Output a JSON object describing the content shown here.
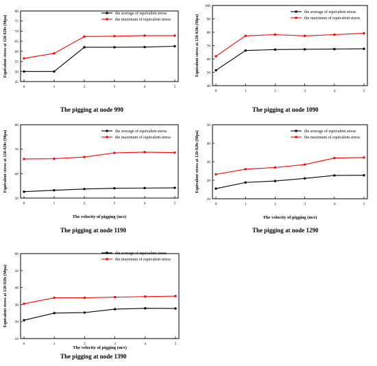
{
  "chart_data": [
    {
      "type": "line",
      "caption": "The pigging at node 990",
      "xlabel": "",
      "ylabel": "Equivalent stress at 120-920s (Mpa)",
      "x": [
        0,
        1,
        2,
        3,
        4,
        5
      ],
      "xlim": [
        0,
        5
      ],
      "ylim": [
        45,
        80
      ],
      "yticks": [
        45,
        50,
        55,
        60,
        65,
        70,
        75,
        80
      ],
      "legend_position": "top-right",
      "series": [
        {
          "name": "the average of equivalent stress",
          "color": "#000000",
          "values": [
            50.0,
            50.0,
            62.0,
            62.0,
            62.1,
            62.5
          ]
        },
        {
          "name": "the maximum of equivalent stress",
          "color": "#ff0000",
          "values": [
            56.5,
            59.0,
            67.3,
            67.5,
            67.8,
            67.8
          ]
        }
      ]
    },
    {
      "type": "line",
      "caption": "The pigging at node 1090",
      "xlabel": "",
      "ylabel": "Equivalent stress at 120-920s (Mpa)",
      "x": [
        0,
        1,
        2,
        3,
        4,
        5
      ],
      "xlim": [
        0,
        5
      ],
      "ylim": [
        40,
        100
      ],
      "yticks": [
        40,
        50,
        60,
        70,
        80,
        90,
        100
      ],
      "legend_position": "top-right",
      "series": [
        {
          "name": "the average of equivalent stress",
          "color": "#000000",
          "values": [
            51.5,
            66.3,
            67.0,
            67.2,
            67.4,
            67.6
          ]
        },
        {
          "name": "the maximum of equivalent stress",
          "color": "#ff0000",
          "values": [
            62.0,
            77.3,
            78.2,
            77.3,
            78.2,
            79.2
          ]
        }
      ]
    },
    {
      "type": "line",
      "caption": "The pigging at node 1190",
      "xlabel": "The velocity of pigging (m/s)",
      "ylabel": "Equivalent stress at 120-920s (Mpa)",
      "x": [
        0,
        1,
        2,
        3,
        4,
        5
      ],
      "xlim": [
        0,
        5
      ],
      "ylim": [
        50,
        80
      ],
      "yticks": [
        50,
        60,
        70,
        80
      ],
      "legend_position": "top-right",
      "series": [
        {
          "name": "the average of equivalent stress",
          "color": "#000000",
          "values": [
            52.6,
            53.2,
            53.7,
            54.0,
            54.1,
            54.2
          ]
        },
        {
          "name": "the maximum of equivalent stress",
          "color": "#ff0000",
          "values": [
            66.0,
            66.1,
            66.8,
            68.5,
            68.8,
            68.6
          ]
        }
      ]
    },
    {
      "type": "line",
      "caption": "The pigging at node 1290",
      "xlabel": "The velocity of pigging (m/s)",
      "ylabel": "Equivalent stress at 120-920s (Mpa)",
      "x": [
        0,
        1,
        2,
        3,
        4,
        5
      ],
      "xlim": [
        0,
        5
      ],
      "ylim": [
        10,
        50
      ],
      "yticks": [
        10,
        20,
        30,
        40,
        50
      ],
      "legend_position": "top-right",
      "series": [
        {
          "name": "the average of equivalent stress",
          "color": "#000000",
          "values": [
            15.5,
            18.8,
            19.6,
            21.0,
            22.6,
            22.7
          ]
        },
        {
          "name": "the maximum of equivalent stress",
          "color": "#ff0000",
          "values": [
            23.2,
            26.0,
            26.9,
            28.5,
            32.0,
            32.3
          ]
        }
      ]
    },
    {
      "type": "line",
      "caption": "The pigging at node 1390",
      "xlabel": "The velocity of pigging (m/s)",
      "ylabel": "Equivalent stress at 120-920s (Mpa)",
      "x": [
        0,
        1,
        2,
        3,
        4,
        5
      ],
      "xlim": [
        0,
        5
      ],
      "ylim": [
        10,
        60
      ],
      "yticks": [
        10,
        20,
        30,
        40,
        50,
        60
      ],
      "legend_position": "top-right",
      "series": [
        {
          "name": "the average of equivalent stress",
          "color": "#000000",
          "values": [
            20.8,
            25.0,
            25.3,
            27.3,
            27.8,
            27.7
          ]
        },
        {
          "name": "the maximum of equivalent stress",
          "color": "#ff0000",
          "values": [
            30.5,
            34.0,
            34.0,
            34.4,
            34.7,
            35.0
          ]
        }
      ]
    }
  ]
}
